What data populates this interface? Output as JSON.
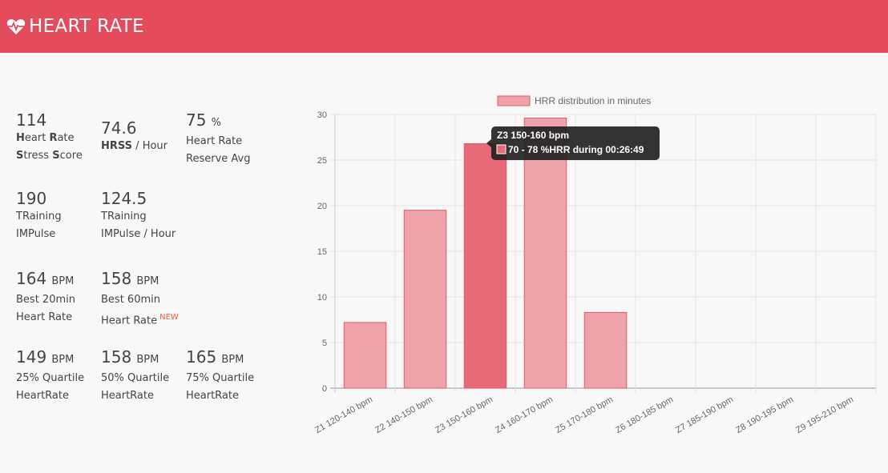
{
  "header": {
    "title": "HEART RATE",
    "icon": "heartbeat-icon",
    "bg_color": "#e44c5c"
  },
  "stats": [
    {
      "value": "114",
      "unit": "",
      "line1": [
        {
          "t": "H",
          "b": true
        },
        {
          "t": "eart ",
          "b": false
        },
        {
          "t": "R",
          "b": true
        },
        {
          "t": "ate",
          "b": false
        }
      ],
      "line2": [
        {
          "t": "S",
          "b": true
        },
        {
          "t": "tress ",
          "b": false
        },
        {
          "t": "S",
          "b": true
        },
        {
          "t": "core",
          "b": false
        }
      ]
    },
    {
      "value": "74.6",
      "unit": "",
      "line1": [
        {
          "t": "HRSS",
          "b": true
        },
        {
          "t": " / Hour",
          "b": false
        }
      ],
      "line2": []
    },
    {
      "value": "75",
      "unit": "%",
      "line1": [
        {
          "t": "Heart Rate",
          "b": false
        }
      ],
      "line2": [
        {
          "t": "Reserve Avg",
          "b": false
        }
      ]
    },
    {
      "value": "190",
      "unit": "",
      "line1": [
        {
          "t": "TRaining",
          "b": false
        }
      ],
      "line2": [
        {
          "t": "IMPulse",
          "b": false
        }
      ]
    },
    {
      "value": "124.5",
      "unit": "",
      "line1": [
        {
          "t": "TRaining",
          "b": false
        }
      ],
      "line2": [
        {
          "t": "IMPulse / Hour",
          "b": false
        }
      ]
    },
    {
      "value": "164",
      "unit": "BPM",
      "line1": [
        {
          "t": "Best 20min",
          "b": false
        }
      ],
      "line2": [
        {
          "t": "Heart Rate",
          "b": false
        }
      ]
    },
    {
      "value": "158",
      "unit": "BPM",
      "line1": [
        {
          "t": "Best 60min",
          "b": false
        }
      ],
      "line2": [
        {
          "t": "Heart Rate",
          "b": false
        }
      ],
      "badge": "NEW"
    },
    {
      "value": "149",
      "unit": "BPM",
      "line1": [
        {
          "t": "25% Quartile",
          "b": false
        }
      ],
      "line2": [
        {
          "t": "HeartRate",
          "b": false
        }
      ]
    },
    {
      "value": "158",
      "unit": "BPM",
      "line1": [
        {
          "t": "50% Quartile",
          "b": false
        }
      ],
      "line2": [
        {
          "t": "HeartRate",
          "b": false
        }
      ]
    },
    {
      "value": "165",
      "unit": "BPM",
      "line1": [
        {
          "t": "75% Quartile",
          "b": false
        }
      ],
      "line2": [
        {
          "t": "HeartRate",
          "b": false
        }
      ]
    }
  ],
  "chart_data": {
    "type": "bar",
    "title": "",
    "legend": "HRR distribution in minutes",
    "legend_position": "top",
    "xlabel": "",
    "ylabel": "",
    "ylim": [
      0,
      30
    ],
    "yticks": [
      0,
      5,
      10,
      15,
      20,
      25,
      30
    ],
    "grid": true,
    "categories": [
      "Z1 120-140 bpm",
      "Z2 140-150 bpm",
      "Z3 150-160 bpm",
      "Z4 160-170 bpm",
      "Z5 170-180 bpm",
      "Z6 180-185 bpm",
      "Z7 185-190 bpm",
      "Z8 190-195 bpm",
      "Z9 195-210 bpm"
    ],
    "series": [
      {
        "name": "HRR distribution in minutes",
        "values": [
          7.2,
          19.5,
          26.8,
          29.6,
          8.3,
          0,
          0,
          0,
          0
        ]
      }
    ],
    "bar_color": "#eea3aa",
    "bar_border": "#e15b68",
    "highlight_color": "#e66a78",
    "highlight_index": 2,
    "tooltip": {
      "title": "Z3 150-160 bpm",
      "body": "70 - 78 %HRR during 00:26:49"
    }
  }
}
